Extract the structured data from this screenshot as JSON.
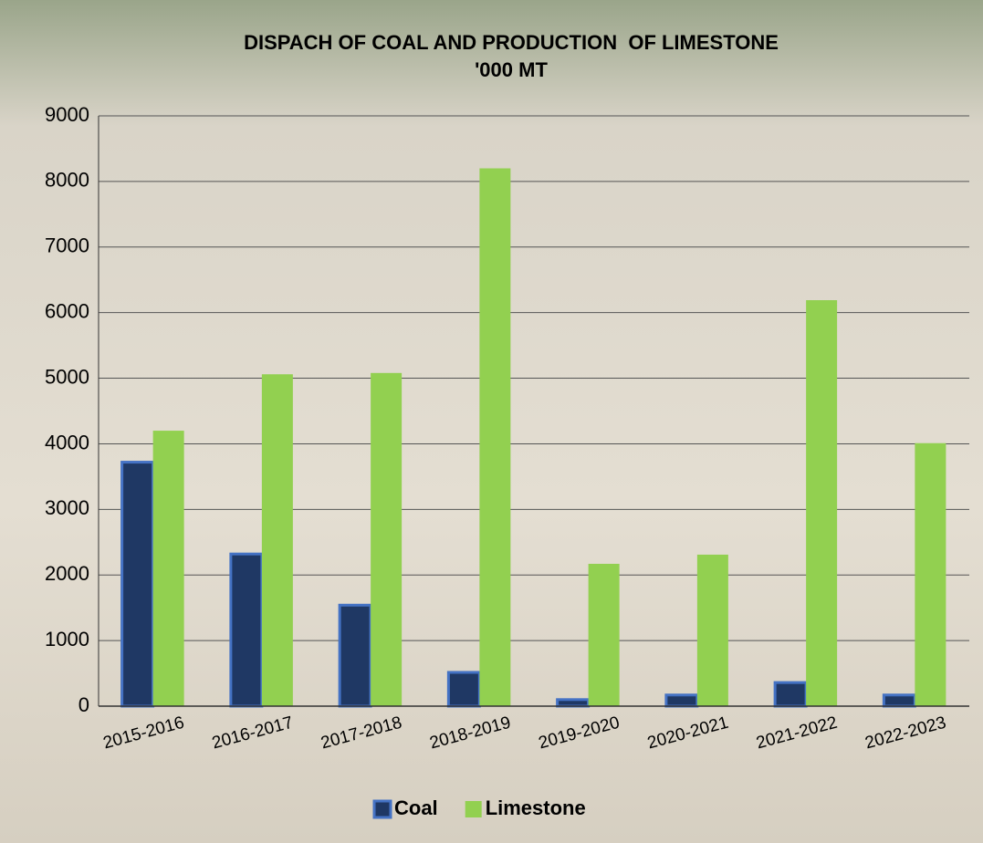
{
  "chart_data": {
    "type": "bar",
    "title": "DISPACH OF COAL AND PRODUCTION  OF LIMESTONE",
    "subtitle": "'000 MT",
    "categories": [
      "2015-2016",
      "2016-2017",
      "2017-2018",
      "2018-2019",
      "2019-2020",
      "2020-2021",
      "2021-2022",
      "2022-2023"
    ],
    "series": [
      {
        "name": "Coal",
        "color": "#1f3864",
        "values": [
          3720,
          2320,
          1540,
          515,
          100,
          170,
          360,
          170
        ]
      },
      {
        "name": "Limestone",
        "color": "#92d050",
        "values": [
          4200,
          5060,
          5080,
          8200,
          2170,
          2310,
          6190,
          4010
        ]
      }
    ],
    "ylim": [
      0,
      9000
    ],
    "yticks": [
      0,
      1000,
      2000,
      3000,
      4000,
      5000,
      6000,
      7000,
      8000,
      9000
    ],
    "grid": true,
    "legend": "bottom"
  }
}
